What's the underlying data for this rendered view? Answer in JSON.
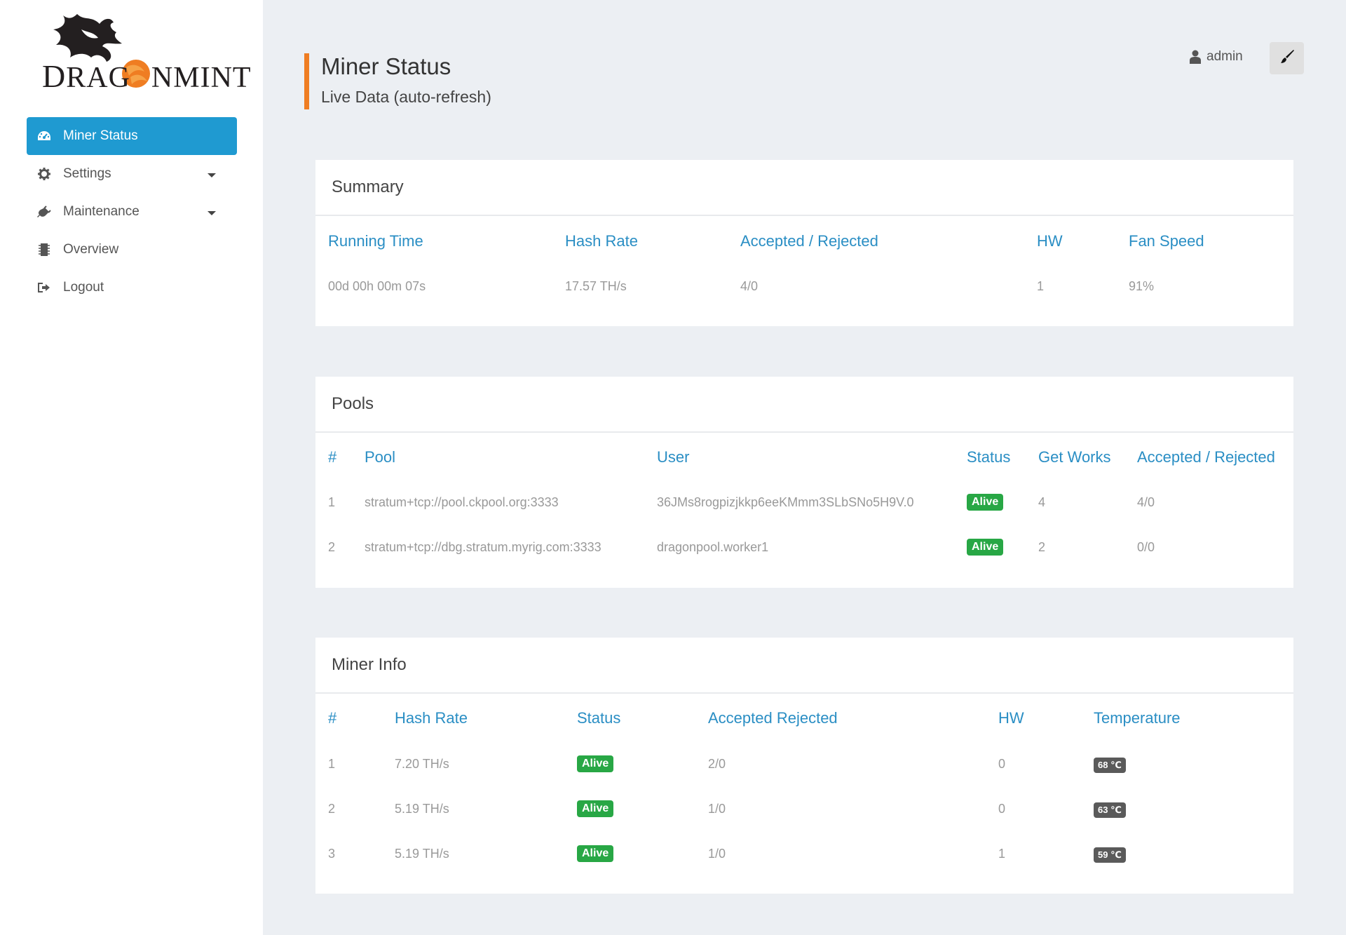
{
  "brand": {
    "logo_text_a": "D",
    "logo_text_b": "RAG",
    "logo_text_c": "NMINT"
  },
  "sidebar": {
    "items": [
      {
        "label": "Miner Status",
        "icon": "dashboard-icon"
      },
      {
        "label": "Settings",
        "icon": "gear-icon"
      },
      {
        "label": "Maintenance",
        "icon": "plug-icon"
      },
      {
        "label": "Overview",
        "icon": "chip-icon"
      },
      {
        "label": "Logout",
        "icon": "logout-icon"
      }
    ]
  },
  "header": {
    "title": "Miner Status",
    "subtitle": "Live Data (auto-refresh)",
    "user": "admin"
  },
  "summary": {
    "title": "Summary",
    "headers": [
      "Running Time",
      "Hash Rate",
      "Accepted / Rejected",
      "HW",
      "Fan Speed"
    ],
    "row": [
      "00d 00h 00m 07s",
      "17.57 TH/s",
      "4/0",
      "1",
      "91%"
    ]
  },
  "pools": {
    "title": "Pools",
    "headers": [
      "#",
      "Pool",
      "User",
      "Status",
      "Get Works",
      "Accepted / Rejected"
    ],
    "rows": [
      {
        "n": "1",
        "pool": "stratum+tcp://pool.ckpool.org:3333",
        "user": "36JMs8rogpizjkkp6eeKMmm3SLbSNo5H9V.0",
        "status": "Alive",
        "getworks": "4",
        "ar": "4/0"
      },
      {
        "n": "2",
        "pool": "stratum+tcp://dbg.stratum.myrig.com:3333",
        "user": "dragonpool.worker1",
        "status": "Alive",
        "getworks": "2",
        "ar": "0/0"
      }
    ]
  },
  "miner_info": {
    "title": "Miner Info",
    "headers": [
      "#",
      "Hash Rate",
      "Status",
      "Accepted Rejected",
      "HW",
      "Temperature"
    ],
    "rows": [
      {
        "n": "1",
        "hash": "7.20 TH/s",
        "status": "Alive",
        "ar": "2/0",
        "hw": "0",
        "temp": "68 ℃"
      },
      {
        "n": "2",
        "hash": "5.19 TH/s",
        "status": "Alive",
        "ar": "1/0",
        "hw": "0",
        "temp": "63 ℃"
      },
      {
        "n": "3",
        "hash": "5.19 TH/s",
        "status": "Alive",
        "ar": "1/0",
        "hw": "1",
        "temp": "59 ℃"
      }
    ]
  },
  "colors": {
    "accent": "#1f9ad1",
    "header_bar": "#ef7d22",
    "status_alive": "#28a745",
    "temp_badge": "#5a5a5a",
    "header_text": "#2a8ec4"
  }
}
